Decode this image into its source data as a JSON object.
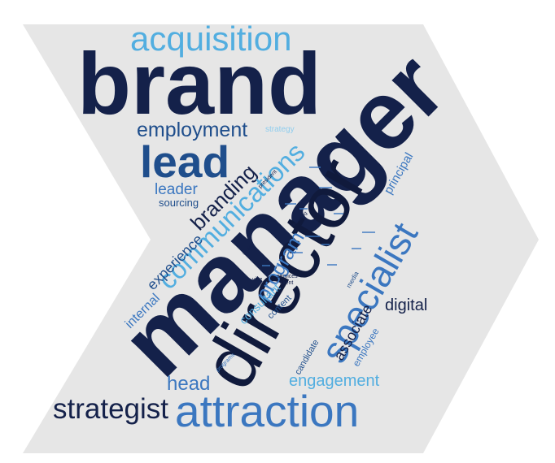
{
  "colors": {
    "background": "#ffffff",
    "chevron": "#e6e6e6",
    "navy": "#14214a",
    "dark_navy": "#101a3c",
    "blue": "#1f4e8c",
    "mid_blue": "#3b77c0",
    "sky_blue": "#52aee0",
    "light_blue": "#8fcdee"
  },
  "words": {
    "manager": "manager",
    "brand": "brand",
    "director": "director",
    "acquisition": "acquisition",
    "lead": "lead",
    "communications": "communications",
    "specialist": "specialist",
    "attraction": "attraction",
    "strategist": "strategist",
    "employment": "employment",
    "branding": "branding",
    "leader": "leader",
    "sourcing": "sourcing",
    "experience": "experience",
    "program": "program",
    "internal": "internal",
    "engagement": "engagement",
    "head": "head",
    "digital": "digital",
    "associate": "associate",
    "employee": "employee",
    "principal": "principal",
    "candidate": "candidate",
    "consultant": "consultant",
    "content": "content",
    "strategy": "strategy",
    "president": "president",
    "services": "services",
    "client": "client",
    "media": "media",
    "programs": "programs",
    "social": "social",
    "vice": "vice",
    "recruiting": "recruiting"
  }
}
